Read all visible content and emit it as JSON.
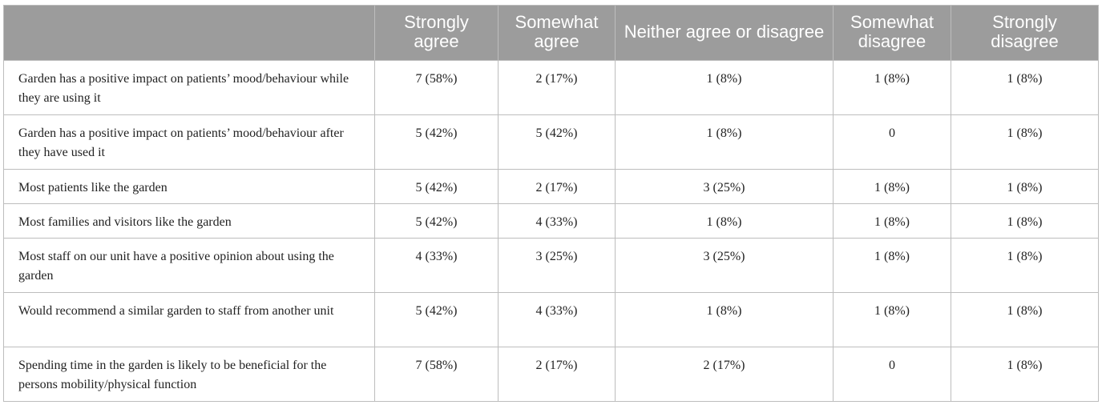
{
  "table": {
    "headers": [
      "",
      "Strongly agree",
      "Somewhat agree",
      "Neither agree or disagree",
      "Somewhat disagree",
      "Strongly disagree"
    ],
    "rows": [
      {
        "label": "Garden has a positive impact on patients’ mood/behaviour while they are using it",
        "values": [
          "7 (58%)",
          "2 (17%)",
          "1 (8%)",
          "1 (8%)",
          "1 (8%)"
        ]
      },
      {
        "label": "Garden has a positive impact on patients’ mood/behaviour after they have used it",
        "values": [
          "5 (42%)",
          "5 (42%)",
          "1 (8%)",
          "0",
          "1 (8%)"
        ]
      },
      {
        "label": "Most patients like the garden",
        "values": [
          "5 (42%)",
          "2 (17%)",
          "3 (25%)",
          "1 (8%)",
          "1 (8%)"
        ]
      },
      {
        "label": "Most families and visitors like the garden",
        "values": [
          "5 (42%)",
          "4 (33%)",
          "1 (8%)",
          "1 (8%)",
          "1 (8%)"
        ]
      },
      {
        "label": "Most staff on our unit have a positive opinion about using the garden",
        "values": [
          "4 (33%)",
          "3 (25%)",
          "3 (25%)",
          "1 (8%)",
          "1 (8%)"
        ]
      },
      {
        "label": "Would recommend a similar garden to staff from another unit",
        "values": [
          "5 (42%)",
          "4 (33%)",
          "1 (8%)",
          "1 (8%)",
          "1 (8%)"
        ]
      },
      {
        "label": "Spending time in the garden is likely to be beneficial for the persons mobility/physical function",
        "values": [
          "7 (58%)",
          "2 (17%)",
          "2 (17%)",
          "0",
          "1 (8%)"
        ]
      }
    ]
  }
}
